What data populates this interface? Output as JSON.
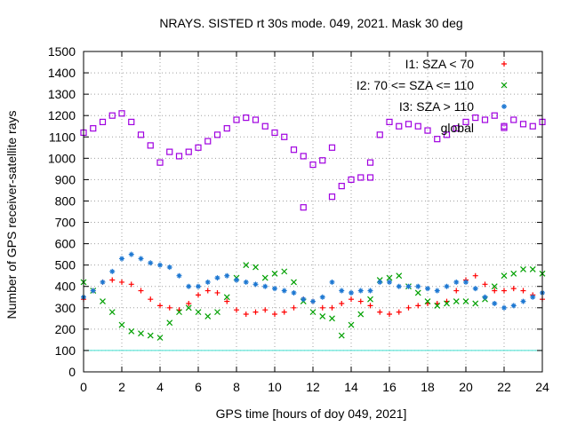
{
  "chart_data": {
    "type": "scatter",
    "title": "NRAYS. SISTED rt 30s mode. 049, 2021. Mask 30 deg",
    "xlabel": "GPS time [hours of doy 049, 2021]",
    "ylabel": "Number of GPS receiver-satellite rays",
    "xlim": [
      0,
      24
    ],
    "ylim": [
      0,
      1500
    ],
    "xticks": [
      0,
      2,
      4,
      6,
      8,
      10,
      12,
      14,
      16,
      18,
      20,
      22,
      24
    ],
    "yticks": [
      0,
      100,
      200,
      300,
      400,
      500,
      600,
      700,
      800,
      900,
      1000,
      1100,
      1200,
      1300,
      1400,
      1500
    ],
    "grid": true,
    "legend_position": "top-right",
    "reference_line": {
      "y": 100,
      "color": "#40e0d0"
    },
    "series": [
      {
        "name": "I1: SZA < 70",
        "marker": "+",
        "color": "#ff0000",
        "x": [
          0,
          0.5,
          1,
          1.5,
          2,
          2.5,
          3,
          3.5,
          4,
          4.5,
          5,
          5.5,
          6,
          6.5,
          7,
          7.5,
          8,
          8.5,
          9,
          9.5,
          10,
          10.5,
          11,
          11.5,
          12,
          12.5,
          13,
          13.5,
          14,
          14.5,
          15,
          15.5,
          16,
          16.5,
          17,
          17.5,
          18,
          18.5,
          19,
          19.5,
          20,
          20.5,
          21,
          21.5,
          22,
          22.5,
          23,
          23.5,
          24
        ],
        "y": [
          340,
          380,
          420,
          430,
          420,
          410,
          380,
          340,
          310,
          300,
          290,
          320,
          360,
          380,
          370,
          330,
          290,
          270,
          280,
          290,
          270,
          280,
          300,
          340,
          330,
          300,
          300,
          320,
          340,
          330,
          310,
          280,
          270,
          280,
          300,
          310,
          320,
          320,
          330,
          380,
          430,
          450,
          410,
          380,
          380,
          390,
          380,
          360,
          340
        ]
      },
      {
        "name": "I2: 70 <= SZA <= 110",
        "marker": "x",
        "color": "#00a000",
        "x": [
          0,
          0.5,
          1,
          1.5,
          2,
          2.5,
          3,
          3.5,
          4,
          4.5,
          5,
          5.5,
          6,
          6.5,
          7,
          7.5,
          8,
          8.5,
          9,
          9.5,
          10,
          10.5,
          11,
          11.5,
          12,
          12.5,
          13,
          13.5,
          14,
          14.5,
          15,
          15.5,
          16,
          16.5,
          17,
          17.5,
          18,
          18.5,
          19,
          19.5,
          20,
          20.5,
          21,
          21.5,
          22,
          22.5,
          23,
          23.5,
          24
        ],
        "y": [
          420,
          380,
          330,
          280,
          220,
          190,
          180,
          170,
          160,
          230,
          280,
          300,
          280,
          260,
          280,
          350,
          440,
          500,
          490,
          440,
          460,
          470,
          420,
          330,
          280,
          260,
          250,
          170,
          220,
          270,
          340,
          430,
          440,
          450,
          400,
          370,
          330,
          310,
          320,
          330,
          330,
          320,
          340,
          400,
          450,
          460,
          480,
          480,
          460
        ]
      },
      {
        "name": "I3: SZA > 110",
        "marker": "*",
        "color": "#1e78d2",
        "x": [
          0,
          0.5,
          1,
          1.5,
          2,
          2.5,
          3,
          3.5,
          4,
          4.5,
          5,
          5.5,
          6,
          6.5,
          7,
          7.5,
          8,
          8.5,
          9,
          9.5,
          10,
          10.5,
          11,
          11.5,
          12,
          12.5,
          13,
          13.5,
          14,
          14.5,
          15,
          15.5,
          16,
          16.5,
          17,
          17.5,
          18,
          18.5,
          19,
          19.5,
          20,
          20.5,
          21,
          21.5,
          22,
          22.5,
          23,
          23.5,
          24
        ],
        "y": [
          350,
          380,
          420,
          470,
          530,
          550,
          530,
          510,
          500,
          490,
          450,
          400,
          400,
          420,
          440,
          450,
          430,
          420,
          410,
          400,
          390,
          380,
          370,
          340,
          330,
          350,
          420,
          380,
          370,
          380,
          380,
          420,
          420,
          400,
          400,
          400,
          390,
          380,
          400,
          420,
          420,
          390,
          350,
          320,
          300,
          310,
          330,
          350,
          370
        ]
      },
      {
        "name": "global",
        "marker": "square",
        "color": "#a000e0",
        "x": [
          0,
          0.5,
          1,
          1.5,
          2,
          2.5,
          3,
          3.5,
          4,
          4.5,
          5,
          5.5,
          6,
          6.5,
          7,
          7.5,
          8,
          8.5,
          9,
          9.5,
          10,
          10.5,
          11,
          11.5,
          12,
          12.5,
          13,
          13.5,
          14,
          14.5,
          15,
          15.5,
          16,
          16.5,
          17,
          17.5,
          18,
          18.5,
          19,
          19.5,
          20,
          20.5,
          21,
          21.5,
          22,
          22.5,
          23,
          23.5,
          24,
          11.5,
          13,
          15
        ],
        "y": [
          1120,
          1140,
          1170,
          1200,
          1210,
          1170,
          1110,
          1060,
          980,
          1030,
          1010,
          1030,
          1050,
          1080,
          1110,
          1140,
          1180,
          1190,
          1180,
          1150,
          1120,
          1100,
          1040,
          1010,
          970,
          990,
          1050,
          870,
          900,
          910,
          910,
          1110,
          1170,
          1150,
          1160,
          1150,
          1130,
          1090,
          1110,
          1140,
          1170,
          1190,
          1180,
          1200,
          1150,
          1180,
          1160,
          1150,
          1170,
          770,
          820,
          980
        ]
      }
    ]
  }
}
